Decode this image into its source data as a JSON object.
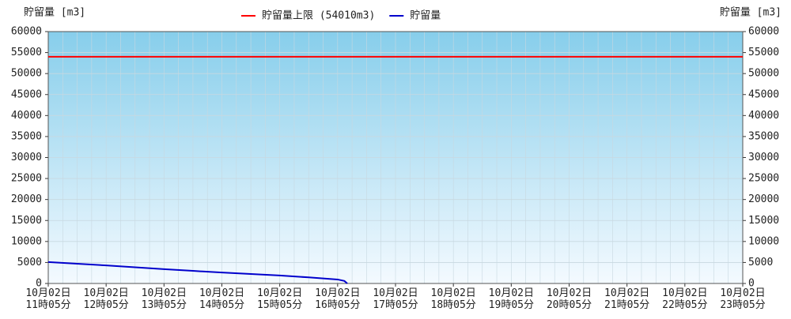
{
  "chart_data": {
    "type": "line",
    "ylabel": "貯留量 [m3]",
    "y2label": "貯留量 [m3]",
    "x": [
      "10月02日 11時05分",
      "10月02日 11時35分",
      "10月02日 12時05分",
      "10月02日 12時35分",
      "10月02日 13時05分",
      "10月02日 13時35分",
      "10月02日 14時05分",
      "10月02日 14時35分",
      "10月02日 15時05分",
      "10月02日 15時35分",
      "10月02日 16時05分",
      "10月02日 16時12分",
      "10月02日 16時15分"
    ],
    "series": [
      {
        "name": "貯留量",
        "color": "#0000cc",
        "values": [
          5100,
          4700,
          4300,
          3850,
          3400,
          3000,
          2600,
          2250,
          1900,
          1450,
          950,
          600,
          0
        ]
      }
    ],
    "hline": {
      "name": "貯留量上限 (54010m3)",
      "color": "#ff0000",
      "value": 54010
    },
    "xlim": [
      "10月02日 11時05分",
      "10月02日 23時05分"
    ],
    "xticks": [
      "10月02日 11時05分",
      "10月02日 12時05分",
      "10月02日 13時05分",
      "10月02日 14時05分",
      "10月02日 15時05分",
      "10月02日 16時05分",
      "10月02日 17時05分",
      "10月02日 18時05分",
      "10月02日 19時05分",
      "10月02日 20時05分",
      "10月02日 21時05分",
      "10月02日 22時05分",
      "10月02日 23時05分"
    ],
    "ylim": [
      0,
      60000
    ],
    "yticks": [
      0,
      5000,
      10000,
      15000,
      20000,
      25000,
      30000,
      35000,
      40000,
      45000,
      50000,
      55000,
      60000
    ],
    "y2lim": [
      0,
      60000
    ],
    "y2ticks": [
      0,
      5000,
      10000,
      15000,
      20000,
      25000,
      30000,
      35000,
      40000,
      45000,
      50000,
      55000,
      60000
    ],
    "grid": true
  }
}
